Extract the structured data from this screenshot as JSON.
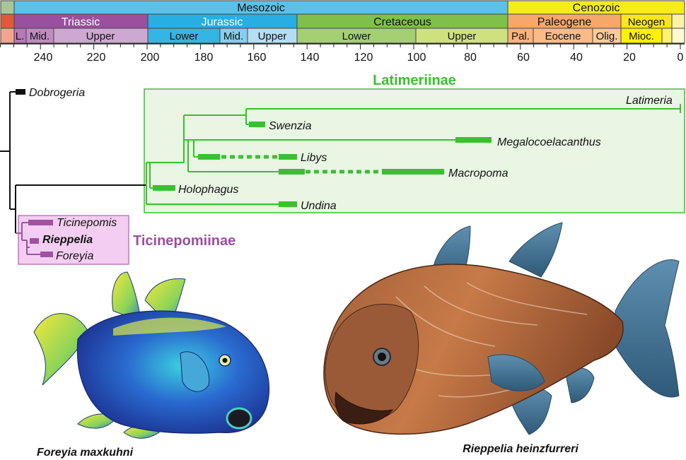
{
  "timescale": {
    "eras": [
      {
        "label": "Mesozoic",
        "color": "#5bc1ea"
      },
      {
        "label": "Cenozoic",
        "color": "#f4ec1c"
      }
    ],
    "periods": [
      {
        "label": "Triassic",
        "color": "#9b4f9f"
      },
      {
        "label": "Jurassic",
        "color": "#27aee2"
      },
      {
        "label": "Cretaceous",
        "color": "#7fc04a"
      },
      {
        "label": "Paleogene",
        "color": "#f8a76b"
      },
      {
        "label": "Neogen",
        "color": "#fbe619"
      }
    ],
    "epochs": [
      {
        "label": "L.",
        "color": "#b57ab7"
      },
      {
        "label": "Mid.",
        "color": "#be8cc0"
      },
      {
        "label": "Upper",
        "color": "#cda8d0"
      },
      {
        "label": "Lower",
        "color": "#33b5e6"
      },
      {
        "label": "Mid.",
        "color": "#86cdee"
      },
      {
        "label": "Upper",
        "color": "#b5def3"
      },
      {
        "label": "Lower",
        "color": "#a4cf72"
      },
      {
        "label": "Upper",
        "color": "#cde27c"
      },
      {
        "label": "Pal.",
        "color": "#fbb27b"
      },
      {
        "label": "Eocene",
        "color": "#fbbb87"
      },
      {
        "label": "Olig.",
        "color": "#fbcb9b"
      },
      {
        "label": "Mioc.",
        "color": "#fff100"
      }
    ],
    "ticks": [
      "240",
      "220",
      "200",
      "180",
      "160",
      "140",
      "120",
      "100",
      "80",
      "60",
      "40",
      "20",
      "0"
    ]
  },
  "clades": {
    "latimeriinae": {
      "label": "Latimeriinae",
      "color": "#3bbf2f"
    },
    "ticinepomiinae": {
      "label": "Ticinepomiinae",
      "color": "#9b4f9f"
    }
  },
  "taxa": {
    "dobrogeria": "Dobrogeria",
    "latimeria": "Latimeria",
    "swenzia": "Swenzia",
    "megalocoelacanthus": "Megalocoelacanthus",
    "libys": "Libys",
    "macropoma": "Macropoma",
    "holophagus": "Holophagus",
    "undina": "Undina",
    "ticinepomis": "Ticinepomis",
    "rieppelia": "Rieppelia",
    "foreyia": "Foreyia"
  },
  "captions": {
    "left": "Foreyia maxkuhni",
    "right": "Rieppelia heinzfurreri"
  }
}
